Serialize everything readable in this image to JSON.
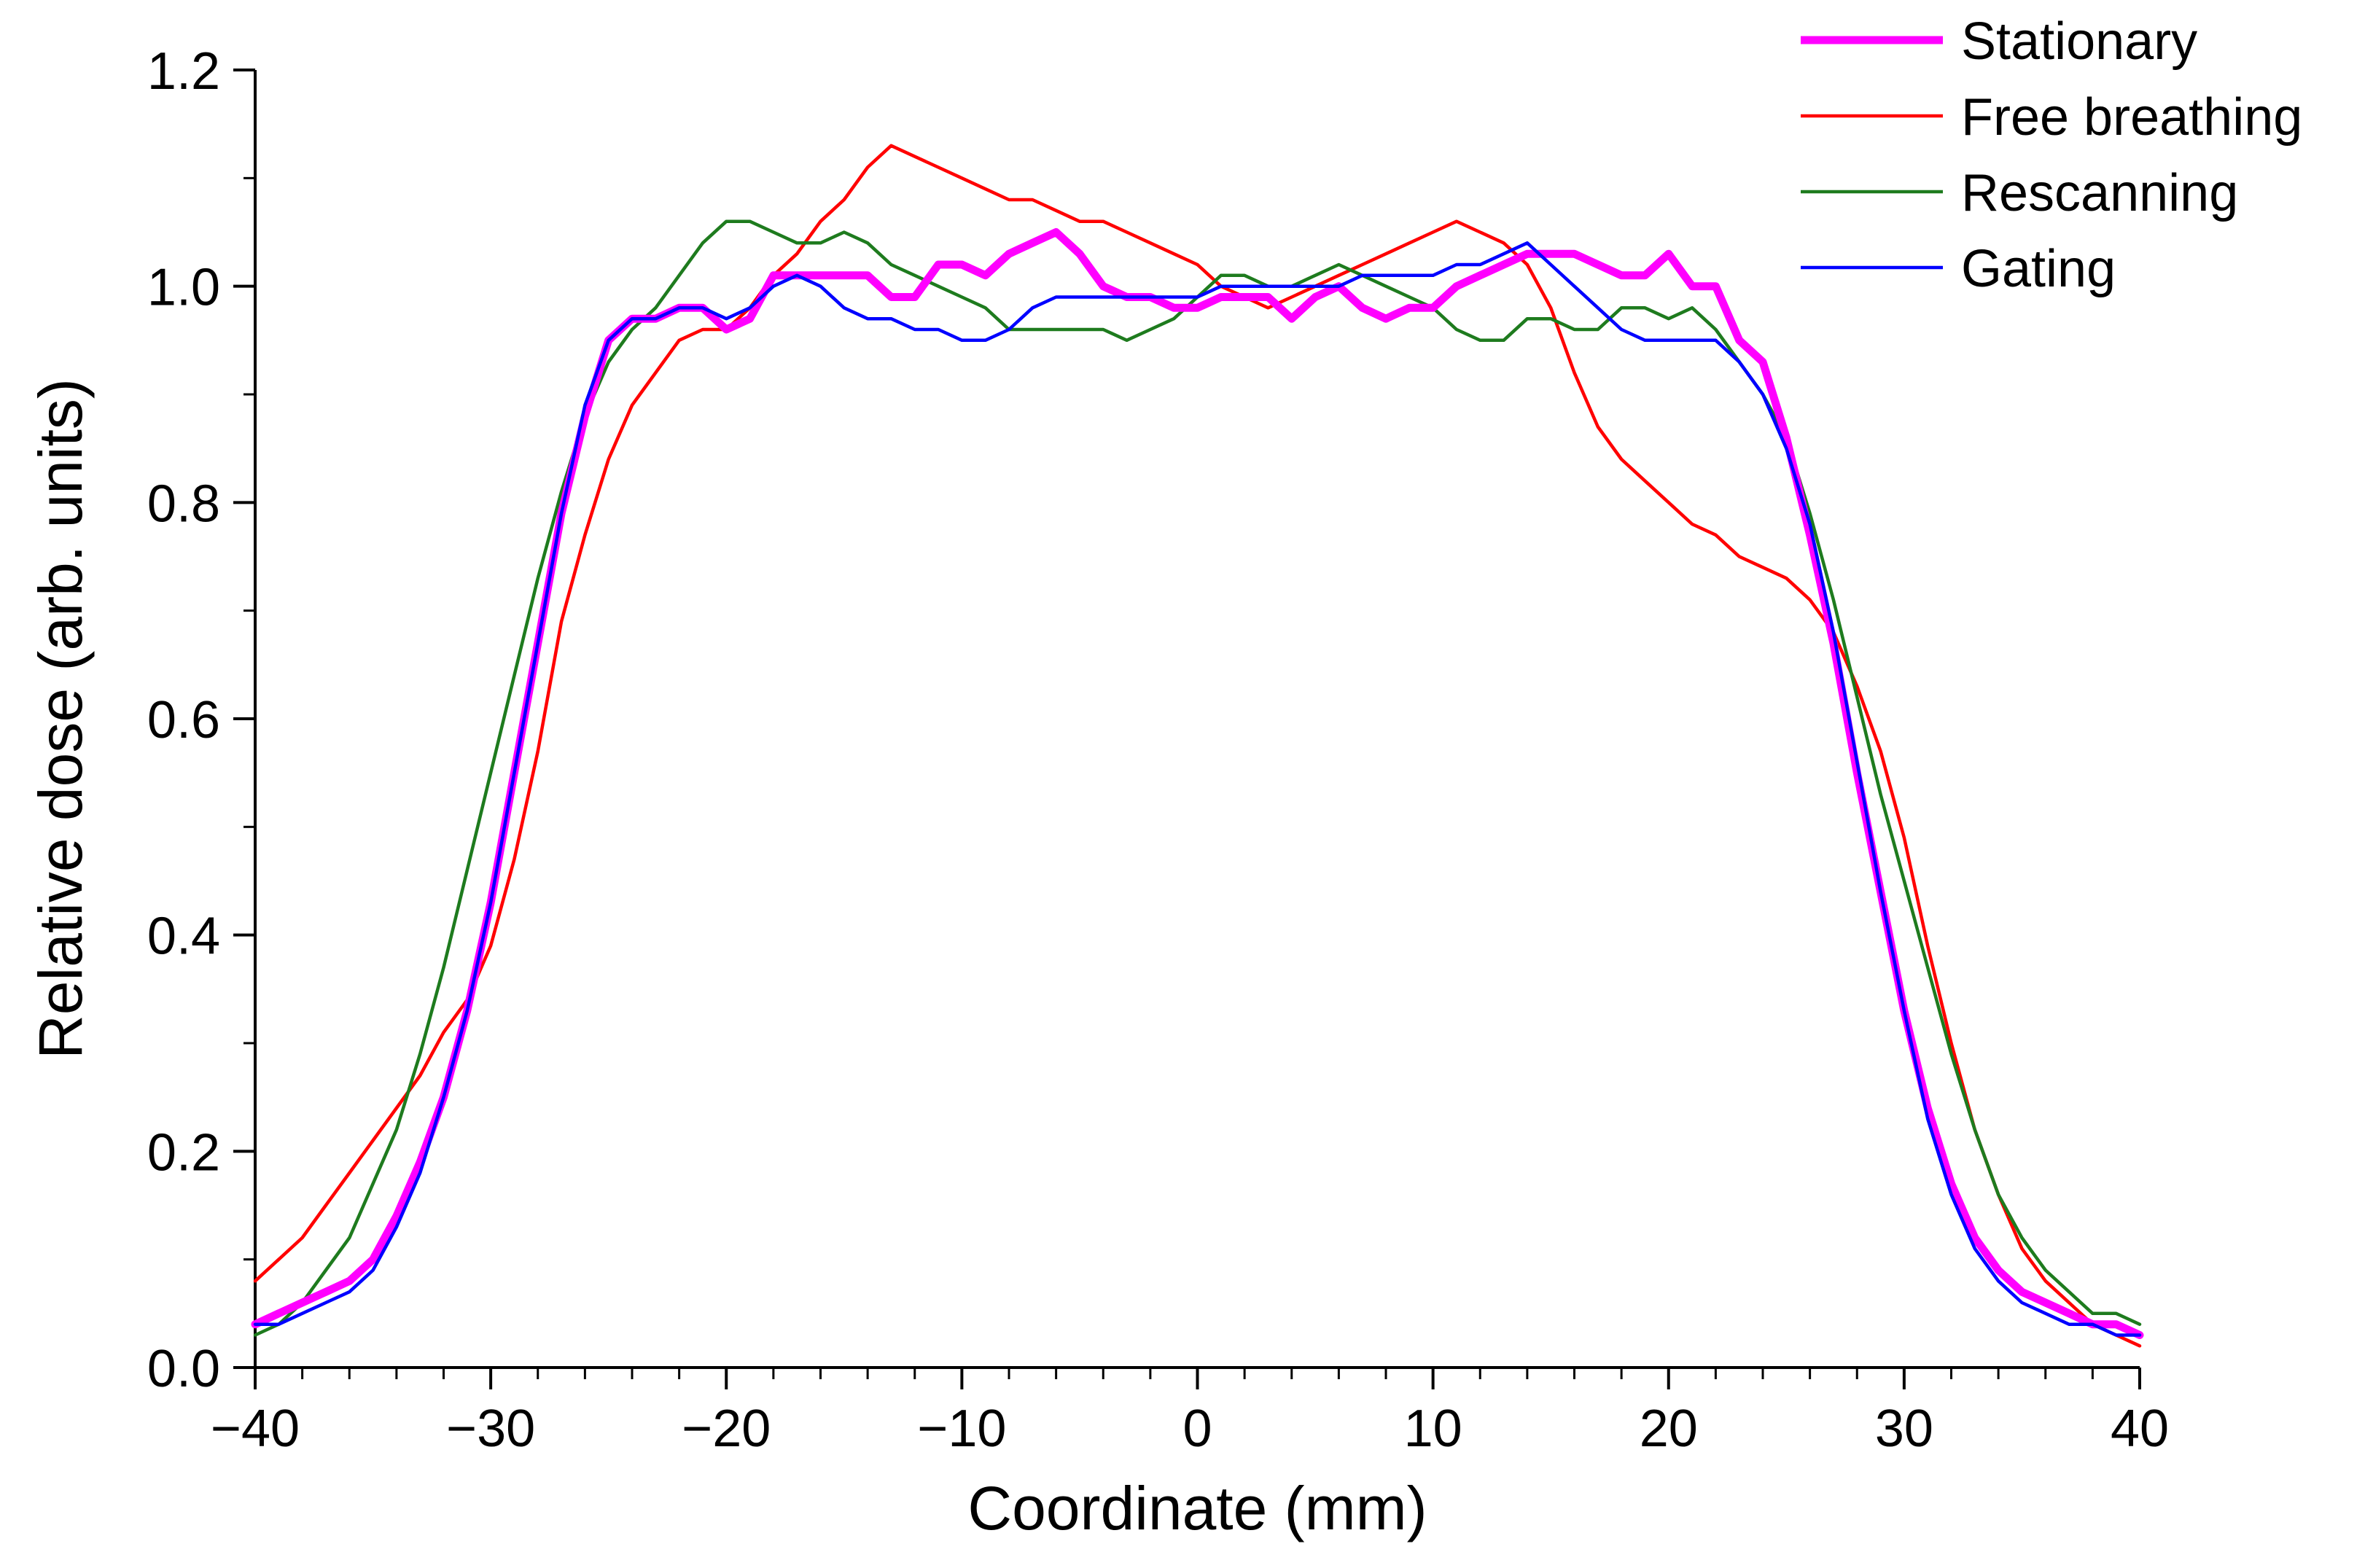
{
  "chart_data": {
    "type": "line",
    "title": "",
    "xlabel": "Coordinate (mm)",
    "ylabel": "Relative dose (arb. units)",
    "xlim": [
      -40,
      40
    ],
    "ylim": [
      0,
      1.2
    ],
    "x_ticks": [
      -40,
      -30,
      -20,
      -10,
      0,
      10,
      20,
      30,
      40
    ],
    "x_tick_labels": [
      "−40",
      "−30",
      "−20",
      "−10",
      "0",
      "10",
      "20",
      "30",
      "40"
    ],
    "y_ticks": [
      0,
      0.2,
      0.4,
      0.6,
      0.8,
      1.0,
      1.2
    ],
    "y_tick_labels": [
      "0.0",
      "0.2",
      "0.4",
      "0.6",
      "0.8",
      "1.0",
      "1.2"
    ],
    "grid": false,
    "legend_position": "top-right",
    "x": [
      -40,
      -39,
      -38,
      -37,
      -36,
      -35,
      -34,
      -33,
      -32,
      -31,
      -30,
      -29,
      -28,
      -27,
      -26,
      -25,
      -24,
      -23,
      -22,
      -21,
      -20,
      -19,
      -18,
      -17,
      -16,
      -15,
      -14,
      -13,
      -12,
      -11,
      -10,
      -9,
      -8,
      -7,
      -6,
      -5,
      -4,
      -3,
      -2,
      -1,
      0,
      1,
      2,
      3,
      4,
      5,
      6,
      7,
      8,
      9,
      10,
      11,
      12,
      13,
      14,
      15,
      16,
      17,
      18,
      19,
      20,
      21,
      22,
      23,
      24,
      25,
      26,
      27,
      28,
      29,
      30,
      31,
      32,
      33,
      34,
      35,
      36,
      37,
      38,
      39,
      40
    ],
    "series": [
      {
        "name": "Stationary",
        "color": "#ff00ff",
        "values": [
          0.04,
          0.05,
          0.06,
          0.07,
          0.08,
          0.1,
          0.14,
          0.19,
          0.25,
          0.33,
          0.43,
          0.55,
          0.67,
          0.79,
          0.88,
          0.95,
          0.97,
          0.97,
          0.98,
          0.98,
          0.96,
          0.97,
          1.01,
          1.01,
          1.01,
          1.01,
          1.01,
          0.99,
          0.99,
          1.02,
          1.02,
          1.01,
          1.03,
          1.04,
          1.05,
          1.03,
          1.0,
          0.99,
          0.99,
          0.98,
          0.98,
          0.99,
          0.99,
          0.99,
          0.97,
          0.99,
          1.0,
          0.98,
          0.97,
          0.98,
          0.98,
          1.0,
          1.01,
          1.02,
          1.03,
          1.03,
          1.03,
          1.02,
          1.01,
          1.01,
          1.03,
          1.0,
          1.0,
          0.95,
          0.93,
          0.86,
          0.77,
          0.67,
          0.55,
          0.44,
          0.33,
          0.24,
          0.17,
          0.12,
          0.09,
          0.07,
          0.06,
          0.05,
          0.04,
          0.04,
          0.03
        ]
      },
      {
        "name": "Free breathing",
        "color": "#ff0000",
        "values": [
          0.08,
          0.1,
          0.12,
          0.15,
          0.18,
          0.21,
          0.24,
          0.27,
          0.31,
          0.34,
          0.39,
          0.47,
          0.57,
          0.69,
          0.77,
          0.84,
          0.89,
          0.92,
          0.95,
          0.96,
          0.96,
          0.98,
          1.01,
          1.03,
          1.06,
          1.08,
          1.11,
          1.13,
          1.12,
          1.11,
          1.1,
          1.09,
          1.08,
          1.08,
          1.07,
          1.06,
          1.06,
          1.05,
          1.04,
          1.03,
          1.02,
          1.0,
          0.99,
          0.98,
          0.99,
          1.0,
          1.01,
          1.02,
          1.03,
          1.04,
          1.05,
          1.06,
          1.05,
          1.04,
          1.02,
          0.98,
          0.92,
          0.87,
          0.84,
          0.82,
          0.8,
          0.78,
          0.77,
          0.75,
          0.74,
          0.73,
          0.71,
          0.68,
          0.63,
          0.57,
          0.49,
          0.39,
          0.3,
          0.22,
          0.16,
          0.11,
          0.08,
          0.06,
          0.04,
          0.03,
          0.02
        ]
      },
      {
        "name": "Rescanning",
        "color": "#1e7b1e",
        "values": [
          0.03,
          0.04,
          0.06,
          0.09,
          0.12,
          0.17,
          0.22,
          0.29,
          0.37,
          0.46,
          0.55,
          0.64,
          0.73,
          0.81,
          0.88,
          0.93,
          0.96,
          0.98,
          1.01,
          1.04,
          1.06,
          1.06,
          1.05,
          1.04,
          1.04,
          1.05,
          1.04,
          1.02,
          1.01,
          1.0,
          0.99,
          0.98,
          0.96,
          0.96,
          0.96,
          0.96,
          0.96,
          0.95,
          0.96,
          0.97,
          0.99,
          1.01,
          1.01,
          1.0,
          1.0,
          1.01,
          1.02,
          1.01,
          1.0,
          0.99,
          0.98,
          0.96,
          0.95,
          0.95,
          0.97,
          0.97,
          0.96,
          0.96,
          0.98,
          0.98,
          0.97,
          0.98,
          0.96,
          0.93,
          0.9,
          0.86,
          0.79,
          0.71,
          0.62,
          0.53,
          0.45,
          0.37,
          0.29,
          0.22,
          0.16,
          0.12,
          0.09,
          0.07,
          0.05,
          0.05,
          0.04
        ]
      },
      {
        "name": "Gating",
        "color": "#0000ff",
        "values": [
          0.04,
          0.04,
          0.05,
          0.06,
          0.07,
          0.09,
          0.13,
          0.18,
          0.25,
          0.33,
          0.43,
          0.55,
          0.67,
          0.79,
          0.89,
          0.95,
          0.97,
          0.97,
          0.98,
          0.98,
          0.97,
          0.98,
          1.0,
          1.01,
          1.0,
          0.98,
          0.97,
          0.97,
          0.96,
          0.96,
          0.95,
          0.95,
          0.96,
          0.98,
          0.99,
          0.99,
          0.99,
          0.99,
          0.99,
          0.99,
          0.99,
          1.0,
          1.0,
          1.0,
          1.0,
          1.0,
          1.0,
          1.01,
          1.01,
          1.01,
          1.01,
          1.02,
          1.02,
          1.03,
          1.04,
          1.02,
          1.0,
          0.98,
          0.96,
          0.95,
          0.95,
          0.95,
          0.95,
          0.93,
          0.9,
          0.85,
          0.78,
          0.68,
          0.56,
          0.44,
          0.33,
          0.23,
          0.16,
          0.11,
          0.08,
          0.06,
          0.05,
          0.04,
          0.04,
          0.03,
          0.03
        ]
      }
    ]
  }
}
